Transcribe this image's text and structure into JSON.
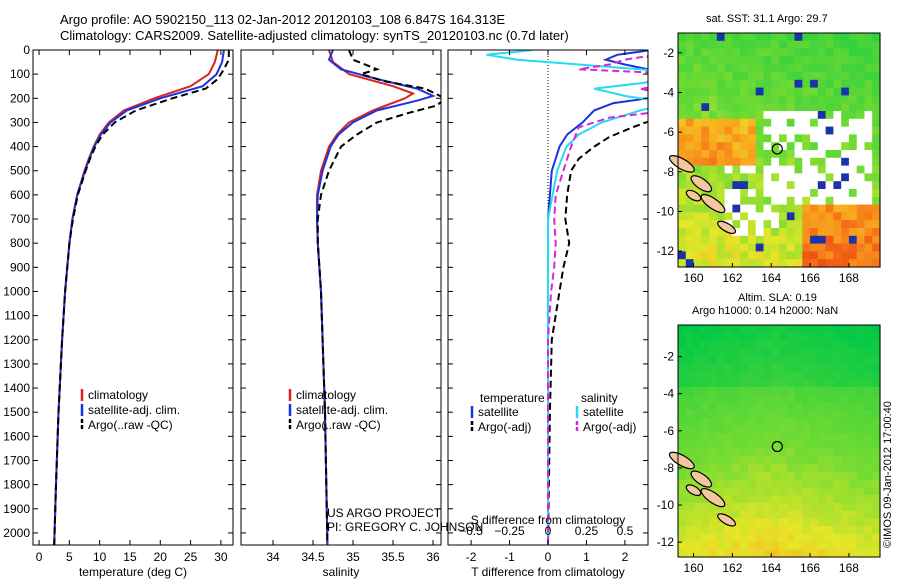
{
  "header": {
    "line1": "Argo profile: AO 5902150_113 02-Jan-2012 20120103_108 6.847S 164.313E",
    "line2": "Climatology: CARS2009. Satellite-adjusted climatology: synTS_20120103.nc (0.7d later)"
  },
  "colors": {
    "climatology": "#dd2222",
    "satellite": "#1a33dd",
    "argo": "#000000",
    "sat_salinity": "#22ddee",
    "argo_salinity": "#dd22dd"
  },
  "chart_data": [
    {
      "type": "line",
      "id": "temperature",
      "xlabel": "temperature (deg C)",
      "ylabel": "",
      "xlim": [
        -1,
        32
      ],
      "ylim": [
        2050,
        0
      ],
      "xticks": [
        0,
        5,
        10,
        15,
        20,
        25,
        30
      ],
      "yticks": [
        0,
        100,
        200,
        300,
        400,
        500,
        600,
        700,
        800,
        900,
        1000,
        1100,
        1200,
        1300,
        1400,
        1500,
        1600,
        1700,
        1800,
        1900,
        2000
      ],
      "legend": [
        "climatology",
        "satellite-adj. clim.",
        "Argo(..raw -QC)"
      ],
      "series": [
        {
          "name": "climatology",
          "style": "solid",
          "depth": [
            0,
            50,
            100,
            150,
            200,
            250,
            300,
            350,
            400,
            450,
            500,
            600,
            700,
            800,
            1000,
            1200,
            1500,
            1800,
            2050
          ],
          "values": [
            29.5,
            29.0,
            28.0,
            25.0,
            19.0,
            14.0,
            11.5,
            10.0,
            9.0,
            8.2,
            7.5,
            6.3,
            5.5,
            5.0,
            4.3,
            3.8,
            3.2,
            2.8,
            2.5
          ]
        },
        {
          "name": "satellite-adj. clim.",
          "style": "solid",
          "depth": [
            0,
            50,
            100,
            150,
            200,
            250,
            300,
            350,
            400,
            450,
            500,
            600,
            700,
            800,
            1000,
            1200,
            1500,
            1800,
            2050
          ],
          "values": [
            30.5,
            30.2,
            29.3,
            27.0,
            20.0,
            14.5,
            11.8,
            10.2,
            9.1,
            8.3,
            7.6,
            6.3,
            5.5,
            5.0,
            4.3,
            3.8,
            3.2,
            2.8,
            2.5
          ]
        },
        {
          "name": "Argo(..raw -QC)",
          "style": "dashed",
          "depth": [
            0,
            40,
            80,
            120,
            160,
            200,
            250,
            300,
            350,
            400,
            450,
            500,
            600,
            700,
            800,
            1000,
            1200,
            1500,
            1800,
            2050
          ],
          "values": [
            31.3,
            31.3,
            30.5,
            29.5,
            27.5,
            22.0,
            16.0,
            12.5,
            10.5,
            9.3,
            8.4,
            7.7,
            6.4,
            5.6,
            5.0,
            4.3,
            3.8,
            3.2,
            2.8,
            2.5
          ]
        }
      ]
    },
    {
      "type": "line",
      "id": "salinity",
      "xlabel": "salinity",
      "ylabel": "",
      "xlim": [
        33.6,
        36.1
      ],
      "ylim": [
        2050,
        0
      ],
      "xticks": [
        34,
        34.5,
        35,
        35.5,
        36
      ],
      "xticklabels": [
        "34",
        "34.5",
        "35",
        "35.5",
        "36"
      ],
      "legend": [
        "climatology",
        "satellite-adj. clim.",
        "Argo(..raw -QC)"
      ],
      "series": [
        {
          "name": "climatology",
          "style": "solid",
          "depth": [
            0,
            50,
            100,
            150,
            180,
            200,
            250,
            300,
            350,
            400,
            500,
            600,
            700,
            800,
            1000,
            1500,
            2050
          ],
          "values": [
            34.7,
            34.75,
            34.95,
            35.5,
            35.75,
            35.65,
            35.25,
            34.95,
            34.8,
            34.7,
            34.6,
            34.55,
            34.55,
            34.56,
            34.6,
            34.65,
            34.68
          ]
        },
        {
          "name": "satellite-adj. clim.",
          "style": "solid",
          "depth": [
            0,
            40,
            80,
            120,
            160,
            190,
            210,
            250,
            300,
            350,
            400,
            500,
            600,
            700,
            800,
            1000,
            1500,
            2050
          ],
          "values": [
            34.75,
            34.7,
            34.85,
            35.3,
            35.8,
            36.0,
            35.8,
            35.3,
            35.0,
            34.82,
            34.72,
            34.62,
            34.56,
            34.55,
            34.56,
            34.6,
            34.65,
            34.68
          ]
        },
        {
          "name": "Argo(..raw -QC)",
          "style": "dashed",
          "depth": [
            0,
            40,
            80,
            100,
            130,
            160,
            200,
            230,
            260,
            300,
            350,
            400,
            500,
            600,
            700,
            800,
            1000,
            1500,
            2050
          ],
          "values": [
            34.95,
            35.0,
            35.3,
            35.1,
            35.4,
            35.9,
            36.15,
            36.05,
            35.7,
            35.3,
            35.05,
            34.85,
            34.7,
            34.6,
            34.56,
            34.56,
            34.6,
            34.65,
            34.68
          ]
        }
      ]
    },
    {
      "type": "line",
      "id": "difference",
      "xlabel": "T difference from climatology",
      "xlabel2": "S difference from climatology",
      "xlim": [
        -2.6,
        2.6
      ],
      "ylim": [
        2050,
        0
      ],
      "xticks": [
        -2,
        -1,
        0,
        1,
        2
      ],
      "sticks": [
        -0.5,
        -0.25,
        0,
        0.25,
        0.5
      ],
      "sticklabels": [
        "−0.5",
        "−0.25",
        "0",
        "0.25",
        "0.5"
      ],
      "legend_titles": [
        "temperature",
        "salinity"
      ],
      "legend": [
        "satellite",
        "Argo(-adj)",
        "satellite",
        "Argo(-adj)"
      ],
      "series": [
        {
          "name": "satellite",
          "quantity": "temperature",
          "style": "solid",
          "depth": [
            0,
            20,
            40,
            60,
            80,
            100,
            130,
            160,
            180,
            200,
            220,
            250,
            300,
            350,
            400,
            450,
            500,
            600,
            700,
            900,
            1000,
            1100,
            1300,
            1500,
            2050
          ],
          "values": [
            2.7,
            1.8,
            1.5,
            2.0,
            2.6,
            2.8,
            2.6,
            2.9,
            3.0,
            2.6,
            1.7,
            1.2,
            0.9,
            0.5,
            0.3,
            0.2,
            0.1,
            0.05,
            0.0,
            0.0,
            0.0,
            0.0,
            0.0,
            0.0,
            0.0
          ]
        },
        {
          "name": "Argo(-adj)",
          "quantity": "temperature",
          "style": "dashed",
          "depth": [
            0,
            30,
            60,
            100,
            130,
            160,
            200,
            250,
            280,
            320,
            360,
            400,
            450,
            500,
            600,
            700,
            800,
            900,
            1000,
            1200,
            1500,
            2050
          ],
          "values": [
            2.9,
            2.6,
            2.7,
            2.8,
            3.1,
            3.2,
            3.0,
            3.3,
            2.9,
            2.2,
            1.6,
            1.2,
            0.8,
            0.6,
            0.5,
            0.45,
            0.55,
            0.4,
            0.3,
            0.1,
            0.05,
            0.0
          ]
        },
        {
          "name": "satellite",
          "quantity": "salinity",
          "style": "solid",
          "depth": [
            0,
            20,
            40,
            60,
            80,
            100,
            130,
            160,
            190,
            220,
            250,
            300,
            350,
            400,
            500,
            600,
            700,
            900,
            2050
          ],
          "values": [
            -0.1,
            -0.4,
            -0.2,
            0.2,
            0.6,
            0.9,
            0.7,
            0.3,
            0.5,
            0.8,
            0.6,
            0.35,
            0.2,
            0.12,
            0.06,
            0.03,
            0.0,
            0.0,
            0.0
          ]
        },
        {
          "name": "Argo(-adj)",
          "quantity": "salinity",
          "style": "dashed",
          "depth": [
            0,
            20,
            40,
            60,
            80,
            100,
            130,
            160,
            190,
            220,
            250,
            280,
            320,
            400,
            500,
            600,
            700,
            800,
            900,
            1000,
            1200,
            2050
          ],
          "values": [
            0.9,
            0.7,
            0.5,
            0.4,
            0.2,
            0.9,
            1.0,
            0.6,
            0.8,
            1.3,
            0.8,
            0.4,
            0.2,
            0.15,
            0.1,
            0.05,
            0.04,
            0.05,
            0.04,
            0.02,
            0.0,
            0.0
          ]
        }
      ]
    },
    {
      "type": "heatmap",
      "id": "sst-map",
      "title": "sat. SST: 31.1  Argo: 29.7",
      "xlim": [
        159.2,
        169.6
      ],
      "ylim": [
        -12.8,
        -1.0
      ],
      "xticks": [
        160,
        162,
        164,
        166,
        168
      ],
      "yticks": [
        -2,
        -4,
        -6,
        -8,
        -10,
        -12
      ],
      "marker": {
        "lon": 164.313,
        "lat": -6.847
      }
    },
    {
      "type": "heatmap",
      "id": "sla-map",
      "title": "Altim. SLA: 0.19",
      "subtitle": "Argo h1000: 0.14 h2000: NaN",
      "xlim": [
        159.2,
        169.6
      ],
      "ylim": [
        -12.8,
        -0.3
      ],
      "xticks": [
        160,
        162,
        164,
        166,
        168
      ],
      "yticks": [
        -2,
        -4,
        -6,
        -8,
        -10,
        -12
      ],
      "marker": {
        "lon": 164.313,
        "lat": -6.847
      }
    }
  ],
  "project": {
    "line1": "US ARGO PROJECT",
    "line2": "PI: GREGORY C. JOHNSON"
  },
  "credit": "©IMOS 09-Jan-2012 17:00:40"
}
